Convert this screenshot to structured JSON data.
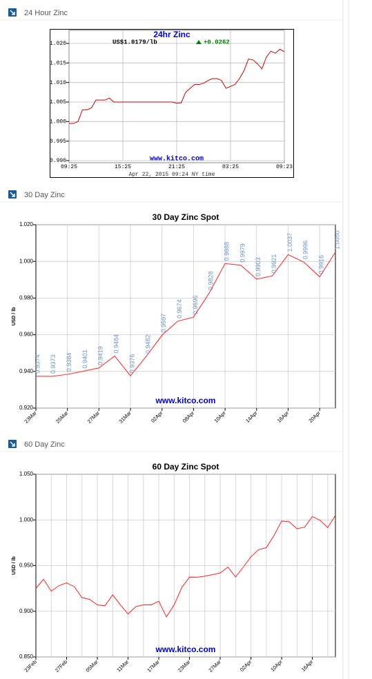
{
  "sections": [
    {
      "title": "24 Hour Zinc"
    },
    {
      "title": "30 Day Zinc"
    },
    {
      "title": "60 Day Zinc"
    }
  ],
  "chart_data": [
    {
      "type": "line",
      "title": "24hr Zinc",
      "price": "US$1.0179/lb",
      "change": "+0.0262",
      "change_color": "#008000",
      "watermark": "www.kitco.com",
      "timestamp": "Apr 22, 2015 09:24 NY time",
      "categories": [
        "09:25",
        null,
        null,
        null,
        null,
        null,
        null,
        null,
        null,
        null,
        null,
        null,
        "15:25",
        null,
        null,
        null,
        null,
        null,
        null,
        null,
        null,
        null,
        null,
        null,
        "21:25",
        null,
        null,
        null,
        null,
        null,
        null,
        null,
        null,
        null,
        null,
        null,
        "03:25",
        null,
        null,
        null,
        null,
        null,
        null,
        null,
        null,
        null,
        null,
        null,
        "09:23"
      ],
      "values": [
        0.9995,
        0.9995,
        1.0,
        1.003,
        1.003,
        1.0035,
        1.0055,
        1.0055,
        1.0055,
        1.006,
        1.005,
        1.005,
        1.005,
        1.005,
        1.005,
        1.005,
        1.005,
        1.005,
        1.005,
        1.005,
        1.005,
        1.005,
        1.005,
        1.005,
        1.0047,
        1.0048,
        1.0075,
        1.0085,
        1.0095,
        1.0095,
        1.0098,
        1.0105,
        1.011,
        1.011,
        1.0105,
        1.0085,
        1.009,
        1.0095,
        1.011,
        1.013,
        1.016,
        1.0158,
        1.0148,
        1.0135,
        1.0165,
        1.018,
        1.0175,
        1.0185,
        1.0179
      ],
      "color": "#cc0000",
      "ylim": [
        0.99,
        1.02
      ],
      "yticks": [
        {
          "value": 0.99,
          "label": "0.990"
        },
        {
          "value": 0.995,
          "label": "0.995"
        },
        {
          "value": 1.0,
          "label": "1.000"
        },
        {
          "value": 1.005,
          "label": "1.005"
        },
        {
          "value": 1.01,
          "label": "1.010"
        },
        {
          "value": 1.015,
          "label": "1.015"
        },
        {
          "value": 1.02,
          "label": "1.020"
        }
      ],
      "grid": true
    },
    {
      "type": "line",
      "title": "30 Day Zinc Spot",
      "ylabel": "USD / lb",
      "watermark": "www.kitco.com",
      "categories": [
        "23Mar",
        null,
        "25Mar",
        null,
        "27Mar",
        null,
        "31Mar",
        null,
        "02Apr",
        null,
        "08Apr",
        null,
        "10Apr",
        null,
        "14Apr",
        null,
        "16Apr",
        null,
        "20Apr",
        null
      ],
      "values": [
        0.9374,
        0.9373,
        0.9384,
        0.9401,
        0.9419,
        0.9484,
        0.9376,
        0.9482,
        0.9597,
        0.9674,
        0.9696,
        0.9828,
        0.9988,
        0.9979,
        0.9903,
        0.9921,
        1.0037,
        0.9996,
        0.9916,
        1.005
      ],
      "value_labels": [
        "0.9374",
        "0.9373",
        "0.9384",
        "0.9401",
        "0.9419",
        "0.9484",
        "0.9376",
        "0.9482",
        "0.9597",
        "0.9674",
        "0.9696",
        "0.9828",
        "0.9988",
        "0.9979",
        "0.9903",
        "0.9921",
        "1.0037",
        "0.9996",
        "0.9916",
        "1.0050"
      ],
      "color": "#ff2020",
      "ylim": [
        0.92,
        1.02
      ],
      "yticks": [
        {
          "value": 0.92,
          "label": "0.920"
        },
        {
          "value": 0.94,
          "label": "0.940"
        },
        {
          "value": 0.96,
          "label": "0.960"
        },
        {
          "value": 0.98,
          "label": "0.980"
        },
        {
          "value": 1.0,
          "label": "1.000"
        },
        {
          "value": 1.02,
          "label": "1.020"
        }
      ],
      "grid": true
    },
    {
      "type": "line",
      "title": "60 Day Zinc Spot",
      "ylabel": "USD / lb",
      "watermark": "www.kitco.com",
      "categories": [
        "23Feb",
        null,
        null,
        null,
        "27Feb",
        null,
        null,
        null,
        "05Mar",
        null,
        null,
        null,
        "11Mar",
        null,
        null,
        null,
        "17Mar",
        null,
        null,
        null,
        "23Mar",
        null,
        null,
        null,
        "27Mar",
        null,
        null,
        null,
        "02Apr",
        null,
        null,
        null,
        "10Apr",
        null,
        null,
        null,
        "16Apr",
        null,
        null,
        null
      ],
      "values": [
        0.925,
        0.935,
        0.922,
        0.928,
        0.931,
        0.927,
        0.915,
        0.913,
        0.907,
        0.906,
        0.918,
        0.907,
        0.897,
        0.905,
        0.907,
        0.907,
        0.911,
        0.894,
        0.907,
        0.926,
        0.9374,
        0.9373,
        0.9384,
        0.9401,
        0.9419,
        0.9484,
        0.9376,
        0.9482,
        0.9597,
        0.9674,
        0.9696,
        0.9828,
        0.9988,
        0.9979,
        0.9903,
        0.9921,
        1.0037,
        0.9996,
        0.9916,
        1.005
      ],
      "color": "#ff2020",
      "ylim": [
        0.85,
        1.05
      ],
      "yticks": [
        {
          "value": 0.85,
          "label": "0.850"
        },
        {
          "value": 0.9,
          "label": "0.900"
        },
        {
          "value": 0.95,
          "label": "0.950"
        },
        {
          "value": 1.0,
          "label": "1.000"
        },
        {
          "value": 1.05,
          "label": "1.050"
        }
      ],
      "grid": true
    }
  ]
}
